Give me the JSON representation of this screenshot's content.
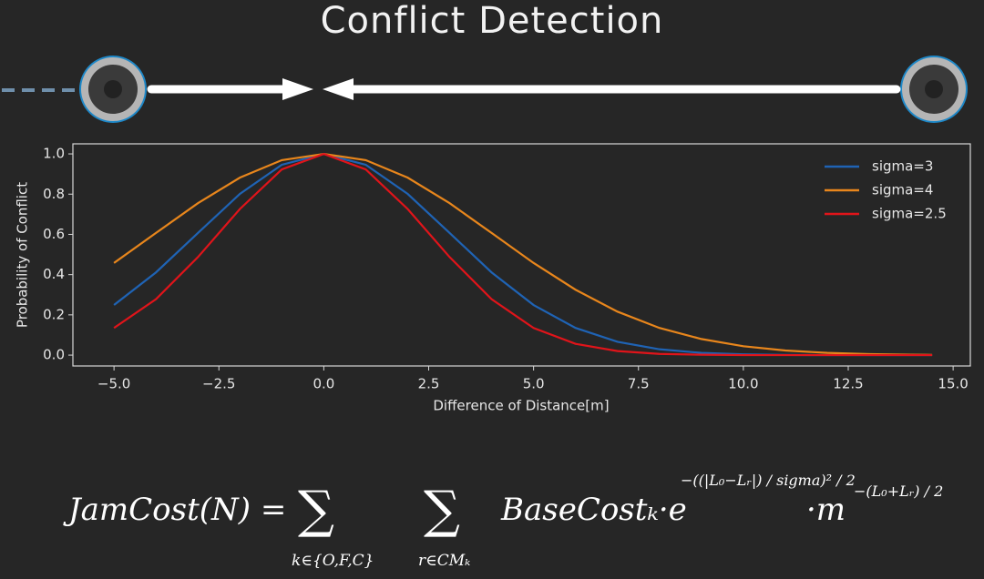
{
  "title": "Conflict Detection",
  "chart_data": {
    "type": "line",
    "x_label": "Difference of Distance[m]",
    "y_label": "Probability of Conflict",
    "x": [
      -5,
      -4,
      -3,
      -2,
      -1,
      0,
      1,
      2,
      3,
      4,
      5,
      6,
      7,
      8,
      9,
      10,
      11,
      12,
      13,
      14,
      14.5
    ],
    "series": [
      {
        "name": "sigma=3",
        "color": "#1f63b4",
        "values": [
          0.249,
          0.411,
          0.607,
          0.801,
          0.946,
          1,
          0.946,
          0.801,
          0.607,
          0.411,
          0.249,
          0.135,
          0.066,
          0.029,
          0.011,
          0.004,
          0.001,
          0,
          0,
          0,
          0
        ]
      },
      {
        "name": "sigma=4",
        "color": "#e8861c",
        "values": [
          0.458,
          0.607,
          0.755,
          0.882,
          0.969,
          1,
          0.969,
          0.882,
          0.755,
          0.607,
          0.458,
          0.325,
          0.216,
          0.135,
          0.08,
          0.044,
          0.023,
          0.011,
          0.005,
          0.002,
          0.001
        ]
      },
      {
        "name": "sigma=2.5",
        "color": "#e0141a",
        "values": [
          0.135,
          0.278,
          0.487,
          0.726,
          0.923,
          1,
          0.923,
          0.726,
          0.487,
          0.278,
          0.135,
          0.056,
          0.02,
          0.006,
          0.002,
          0,
          0,
          0,
          0,
          0,
          0
        ]
      }
    ],
    "xlim": [
      -5.98,
      15.41
    ],
    "ylim": [
      -0.054,
      1.05
    ],
    "xticks": [
      {
        "value": -5,
        "label": "−5.0"
      },
      {
        "value": -2.5,
        "label": "−2.5"
      },
      {
        "value": 0,
        "label": "0.0"
      },
      {
        "value": 2.5,
        "label": "2.5"
      },
      {
        "value": 5,
        "label": "5.0"
      },
      {
        "value": 7.5,
        "label": "7.5"
      },
      {
        "value": 10,
        "label": "10.0"
      },
      {
        "value": 12.5,
        "label": "12.5"
      },
      {
        "value": 15,
        "label": "15.0"
      }
    ],
    "yticks": [
      {
        "value": 0,
        "label": "0.0"
      },
      {
        "value": 0.2,
        "label": "0.2"
      },
      {
        "value": 0.4,
        "label": "0.4"
      },
      {
        "value": 0.6,
        "label": "0.6"
      },
      {
        "value": 0.8,
        "label": "0.8"
      },
      {
        "value": 1,
        "label": "1.0"
      }
    ],
    "legend": "upper right",
    "grid": false
  },
  "formula": {
    "lhs": "JamCost(N) =",
    "sum1": "∑",
    "sum1_index": "k∈{O,F,C}",
    "sum2": "∑",
    "sum2_index": "r∈CMₖ",
    "term": "BaseCostₖ·e",
    "exponent1": "−((|L₀−Lᵣ|) / sigma)² / 2",
    "factor": "·m",
    "exponent2": "−(L₀+Lᵣ) / 2"
  }
}
